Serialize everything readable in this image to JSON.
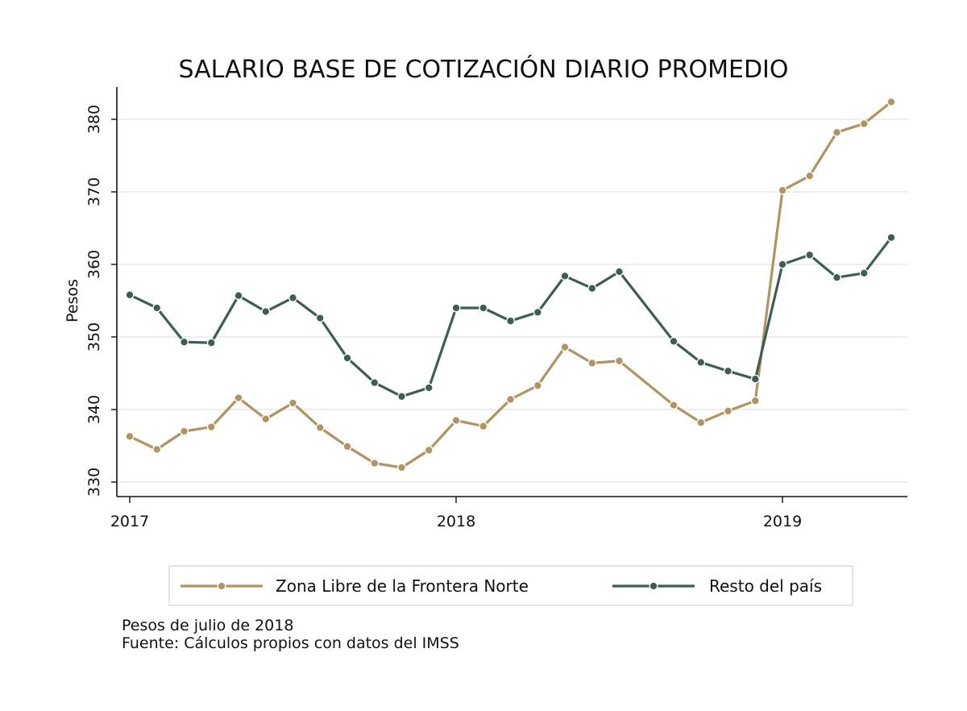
{
  "chart_data": {
    "type": "line",
    "title": "SALARIO BASE DE COTIZACIÓN DIARIO PROMEDIO",
    "xlabel": "",
    "ylabel": "Pesos",
    "x": [
      2017.0,
      2017.0833,
      2017.1667,
      2017.25,
      2017.3333,
      2017.4167,
      2017.5,
      2017.5833,
      2017.6667,
      2017.75,
      2017.8333,
      2017.9167,
      2018.0,
      2018.0833,
      2018.1667,
      2018.25,
      2018.3333,
      2018.4167,
      2018.5,
      2018.6667,
      2018.75,
      2018.8333,
      2018.9167,
      2019.0,
      2019.0833,
      2019.1667,
      2019.25,
      2019.3333
    ],
    "xlim": [
      2017.0,
      2019.3833
    ],
    "ylim": [
      328.5,
      385.5
    ],
    "xticks": [
      2017,
      2018,
      2019
    ],
    "xtick_labels": [
      "2017",
      "2018",
      "2019"
    ],
    "yticks": [
      330,
      340,
      350,
      360,
      370,
      380
    ],
    "ytick_labels": [
      "330",
      "340",
      "350",
      "360",
      "370",
      "380"
    ],
    "grid": true,
    "legend_position": "bottom",
    "series": [
      {
        "name": "Zona Libre de la Frontera Norte",
        "color": "#b09462",
        "values": [
          336.3,
          334.5,
          337.0,
          337.6,
          341.6,
          338.7,
          340.9,
          337.5,
          334.9,
          332.6,
          332.0,
          334.4,
          338.5,
          337.7,
          341.4,
          343.3,
          348.6,
          346.4,
          346.7,
          340.6,
          338.2,
          339.8,
          341.2,
          370.2,
          372.2,
          378.2,
          379.4,
          382.4
        ]
      },
      {
        "name": "Resto del país",
        "color": "#3d5d55",
        "values": [
          355.8,
          354.0,
          349.3,
          349.2,
          355.7,
          353.5,
          355.4,
          352.6,
          347.1,
          343.7,
          341.8,
          343.0,
          354.0,
          354.0,
          352.2,
          353.4,
          358.4,
          356.7,
          359.0,
          349.4,
          346.5,
          345.3,
          344.2,
          360.0,
          361.3,
          358.2,
          358.8,
          363.7
        ]
      }
    ],
    "notes": [
      "Pesos de julio de 2018",
      "Fuente: Cálculos propios con datos del IMSS"
    ]
  }
}
